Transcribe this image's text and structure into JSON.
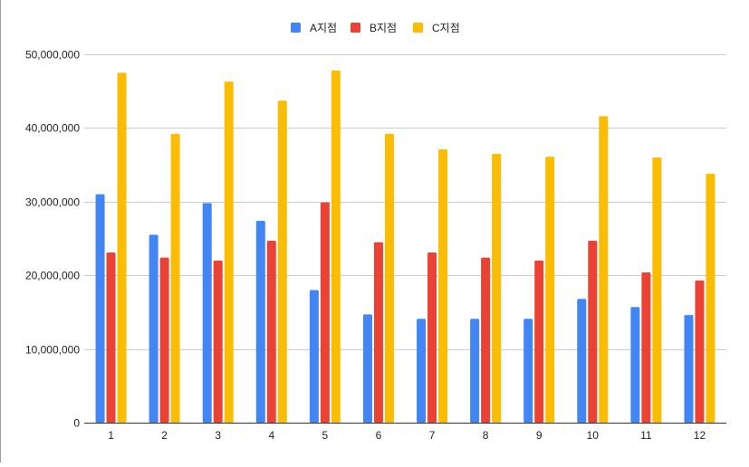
{
  "chart_data": {
    "type": "bar",
    "categories": [
      "1",
      "2",
      "3",
      "4",
      "5",
      "6",
      "7",
      "8",
      "9",
      "10",
      "11",
      "12"
    ],
    "series": [
      {
        "name": "A지점",
        "color": "#4285f4",
        "values": [
          31000000,
          25500000,
          29800000,
          27400000,
          18000000,
          14700000,
          14100000,
          14100000,
          14100000,
          16800000,
          15700000,
          14600000
        ]
      },
      {
        "name": "B지점",
        "color": "#ea4335",
        "values": [
          23100000,
          22400000,
          22000000,
          24700000,
          29900000,
          24500000,
          23100000,
          22400000,
          22000000,
          24700000,
          20400000,
          19300000
        ]
      },
      {
        "name": "C지점",
        "color": "#fbbc04",
        "values": [
          47500000,
          39200000,
          46300000,
          43700000,
          47800000,
          39200000,
          37100000,
          36500000,
          36100000,
          41600000,
          36000000,
          33800000
        ]
      }
    ],
    "yticks": [
      "0",
      "10,000,000",
      "20,000,000",
      "30,000,000",
      "40,000,000",
      "50,000,000"
    ],
    "ylim": [
      0,
      50000000
    ],
    "ytick_values": [
      0,
      10000000,
      20000000,
      30000000,
      40000000,
      50000000
    ],
    "grid": true,
    "legend_position": "top-center"
  }
}
